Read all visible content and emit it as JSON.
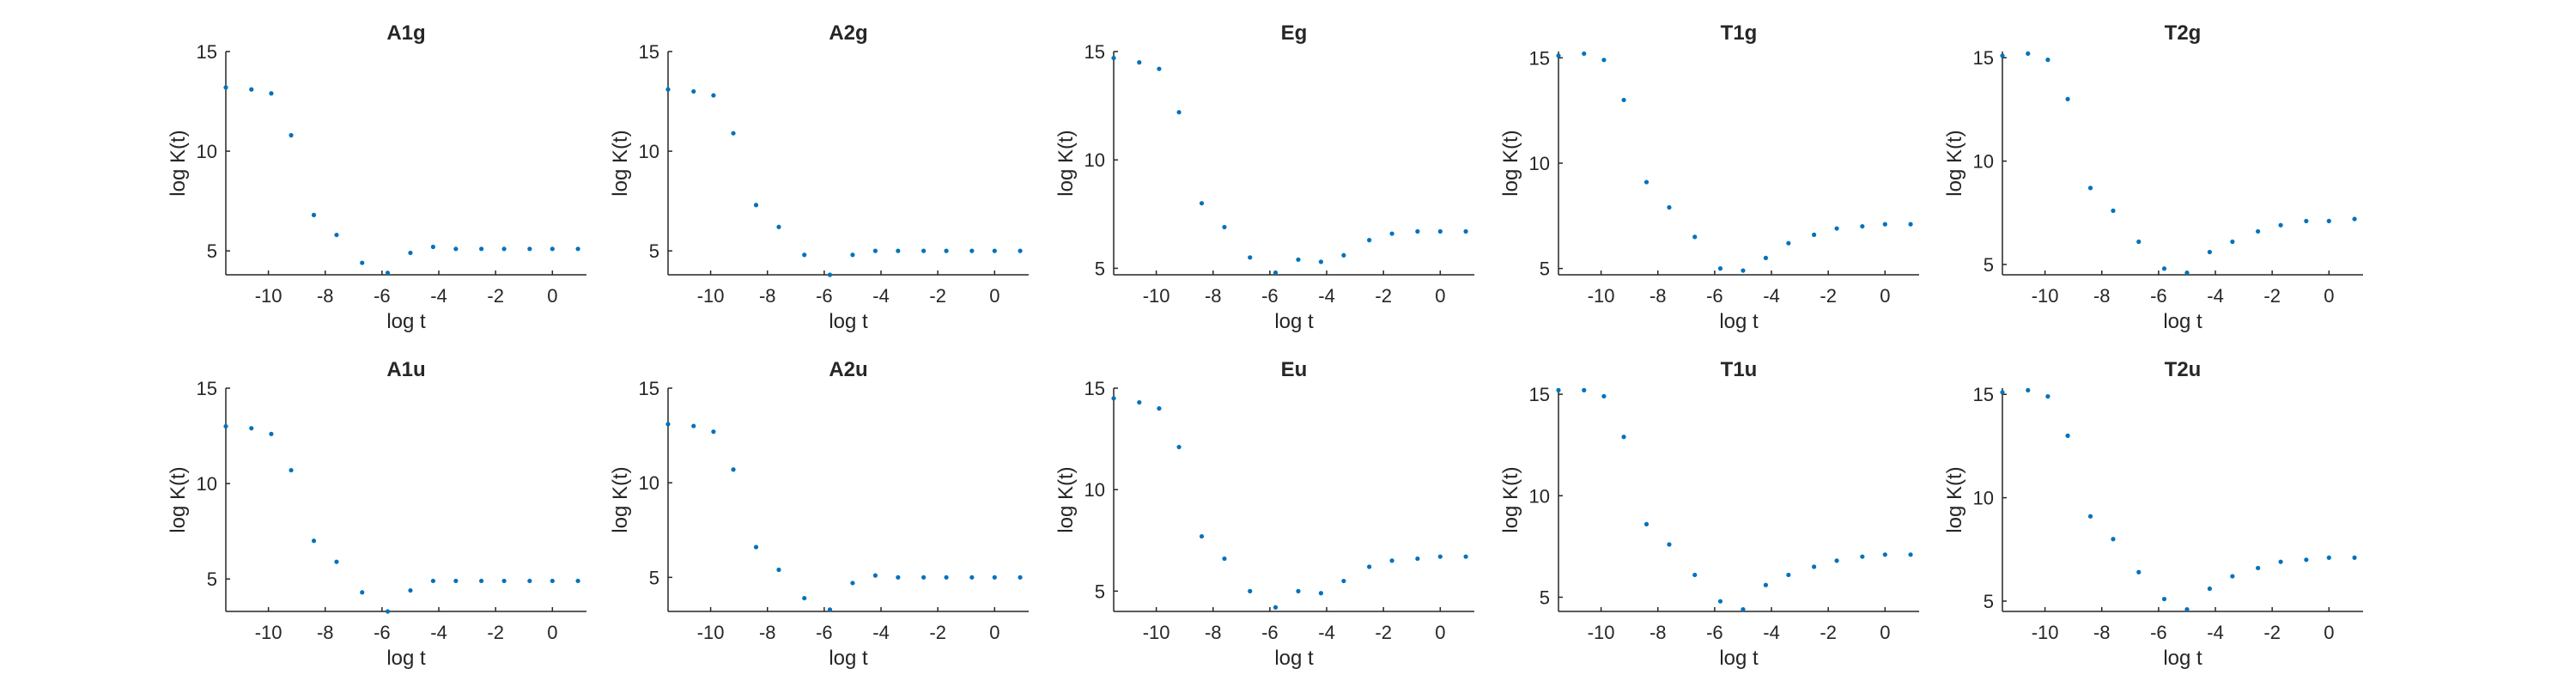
{
  "chart_data": [
    {
      "type": "scatter",
      "title": "A1g",
      "xlabel": "log t",
      "ylabel": "log K(t)",
      "xlim": [
        -11.5,
        1.2
      ],
      "ylim": [
        3.8,
        15
      ],
      "xticks": [
        -10,
        -8,
        -6,
        -4,
        -2,
        0
      ],
      "yticks": [
        5,
        10,
        15
      ],
      "series": [
        {
          "x": [
            -11.5,
            -10.6,
            -9.9,
            -9.2,
            -8.4,
            -7.6,
            -6.7,
            -5.8,
            -5.0,
            -4.2,
            -3.4,
            -2.5,
            -1.7,
            -0.8,
            0.0,
            0.9
          ],
          "y": [
            13.2,
            13.1,
            12.9,
            10.8,
            6.8,
            5.8,
            4.4,
            3.9,
            4.9,
            5.2,
            5.1,
            5.1,
            5.1,
            5.1,
            5.1,
            5.1
          ]
        }
      ]
    },
    {
      "type": "scatter",
      "title": "A2g",
      "xlabel": "log t",
      "ylabel": "log K(t)",
      "xlim": [
        -11.5,
        1.2
      ],
      "ylim": [
        3.8,
        15
      ],
      "xticks": [
        -10,
        -8,
        -6,
        -4,
        -2,
        0
      ],
      "yticks": [
        5,
        10,
        15
      ],
      "series": [
        {
          "x": [
            -11.5,
            -10.6,
            -9.9,
            -9.2,
            -8.4,
            -7.6,
            -6.7,
            -5.8,
            -5.0,
            -4.2,
            -3.4,
            -2.5,
            -1.7,
            -0.8,
            0.0,
            0.9
          ],
          "y": [
            13.1,
            13.0,
            12.8,
            10.9,
            7.3,
            6.2,
            4.8,
            3.8,
            4.8,
            5.0,
            5.0,
            5.0,
            5.0,
            5.0,
            5.0,
            5.0
          ]
        }
      ]
    },
    {
      "type": "scatter",
      "title": "Eg",
      "xlabel": "log t",
      "ylabel": "log K(t)",
      "xlim": [
        -11.5,
        1.2
      ],
      "ylim": [
        4.7,
        15
      ],
      "xticks": [
        -10,
        -8,
        -6,
        -4,
        -2,
        0
      ],
      "yticks": [
        5,
        10,
        15
      ],
      "series": [
        {
          "x": [
            -11.5,
            -10.6,
            -9.9,
            -9.2,
            -8.4,
            -7.6,
            -6.7,
            -5.8,
            -5.0,
            -4.2,
            -3.4,
            -2.5,
            -1.7,
            -0.8,
            0.0,
            0.9
          ],
          "y": [
            14.7,
            14.5,
            14.2,
            12.2,
            8.0,
            6.9,
            5.5,
            4.8,
            5.4,
            5.3,
            5.6,
            6.3,
            6.6,
            6.7,
            6.7,
            6.7
          ]
        }
      ]
    },
    {
      "type": "scatter",
      "title": "T1g",
      "xlabel": "log t",
      "ylabel": "log K(t)",
      "xlim": [
        -11.5,
        1.2
      ],
      "ylim": [
        4.7,
        15.3
      ],
      "xticks": [
        -10,
        -8,
        -6,
        -4,
        -2,
        0
      ],
      "yticks": [
        5,
        10,
        15
      ],
      "series": [
        {
          "x": [
            -11.5,
            -10.6,
            -9.9,
            -9.2,
            -8.4,
            -7.6,
            -6.7,
            -5.8,
            -5.0,
            -4.2,
            -3.4,
            -2.5,
            -1.7,
            -0.8,
            0.0,
            0.9
          ],
          "y": [
            15.1,
            15.2,
            14.9,
            13.0,
            9.1,
            7.9,
            6.5,
            5.0,
            4.9,
            5.5,
            6.2,
            6.6,
            6.9,
            7.0,
            7.1,
            7.1
          ]
        }
      ]
    },
    {
      "type": "scatter",
      "title": "T2g",
      "xlabel": "log t",
      "ylabel": "log K(t)",
      "xlim": [
        -11.5,
        1.2
      ],
      "ylim": [
        4.5,
        15.3
      ],
      "xticks": [
        -10,
        -8,
        -6,
        -4,
        -2,
        0
      ],
      "yticks": [
        5,
        10,
        15
      ],
      "series": [
        {
          "x": [
            -11.5,
            -10.6,
            -9.9,
            -9.2,
            -8.4,
            -7.6,
            -6.7,
            -5.8,
            -5.0,
            -4.2,
            -3.4,
            -2.5,
            -1.7,
            -0.8,
            0.0,
            0.9
          ],
          "y": [
            15.1,
            15.2,
            14.9,
            13.0,
            8.7,
            7.6,
            6.1,
            4.8,
            4.6,
            5.6,
            6.1,
            6.6,
            6.9,
            7.1,
            7.1,
            7.2
          ]
        }
      ]
    },
    {
      "type": "scatter",
      "title": "A1u",
      "xlabel": "log t",
      "ylabel": "log K(t)",
      "xlim": [
        -11.5,
        1.2
      ],
      "ylim": [
        3.3,
        15
      ],
      "xticks": [
        -10,
        -8,
        -6,
        -4,
        -2,
        0
      ],
      "yticks": [
        5,
        10,
        15
      ],
      "series": [
        {
          "x": [
            -11.5,
            -10.6,
            -9.9,
            -9.2,
            -8.4,
            -7.6,
            -6.7,
            -5.8,
            -5.0,
            -4.2,
            -3.4,
            -2.5,
            -1.7,
            -0.8,
            0.0,
            0.9
          ],
          "y": [
            13.0,
            12.9,
            12.6,
            10.7,
            7.0,
            5.9,
            4.3,
            3.3,
            4.4,
            4.9,
            4.9,
            4.9,
            4.9,
            4.9,
            4.9,
            4.9
          ]
        }
      ]
    },
    {
      "type": "scatter",
      "title": "A2u",
      "xlabel": "log t",
      "ylabel": "log K(t)",
      "xlim": [
        -11.5,
        1.2
      ],
      "ylim": [
        3.2,
        15
      ],
      "xticks": [
        -10,
        -8,
        -6,
        -4,
        -2,
        0
      ],
      "yticks": [
        5,
        10,
        15
      ],
      "series": [
        {
          "x": [
            -11.5,
            -10.6,
            -9.9,
            -9.2,
            -8.4,
            -7.6,
            -6.7,
            -5.8,
            -5.0,
            -4.2,
            -3.4,
            -2.5,
            -1.7,
            -0.8,
            0.0,
            0.9
          ],
          "y": [
            13.1,
            13.0,
            12.7,
            10.7,
            6.6,
            5.4,
            3.9,
            3.3,
            4.7,
            5.1,
            5.0,
            5.0,
            5.0,
            5.0,
            5.0,
            5.0
          ]
        }
      ]
    },
    {
      "type": "scatter",
      "title": "Eu",
      "xlabel": "log t",
      "ylabel": "log K(t)",
      "xlim": [
        -11.5,
        1.2
      ],
      "ylim": [
        4.0,
        15
      ],
      "xticks": [
        -10,
        -8,
        -6,
        -4,
        -2,
        0
      ],
      "yticks": [
        5,
        10,
        15
      ],
      "series": [
        {
          "x": [
            -11.5,
            -10.6,
            -9.9,
            -9.2,
            -8.4,
            -7.6,
            -6.7,
            -5.8,
            -5.0,
            -4.2,
            -3.4,
            -2.5,
            -1.7,
            -0.8,
            0.0,
            0.9
          ],
          "y": [
            14.5,
            14.3,
            14.0,
            12.1,
            7.7,
            6.6,
            5.0,
            4.2,
            5.0,
            4.9,
            5.5,
            6.2,
            6.5,
            6.6,
            6.7,
            6.7
          ]
        }
      ]
    },
    {
      "type": "scatter",
      "title": "T1u",
      "xlabel": "log t",
      "ylabel": "log K(t)",
      "xlim": [
        -11.5,
        1.2
      ],
      "ylim": [
        4.3,
        15.3
      ],
      "xticks": [
        -10,
        -8,
        -6,
        -4,
        -2,
        0
      ],
      "yticks": [
        5,
        10,
        15
      ],
      "series": [
        {
          "x": [
            -11.5,
            -10.6,
            -9.9,
            -9.2,
            -8.4,
            -7.6,
            -6.7,
            -5.8,
            -5.0,
            -4.2,
            -3.4,
            -2.5,
            -1.7,
            -0.8,
            0.0,
            0.9
          ],
          "y": [
            15.2,
            15.2,
            14.9,
            12.9,
            8.6,
            7.6,
            6.1,
            4.8,
            4.4,
            5.6,
            6.1,
            6.5,
            6.8,
            7.0,
            7.1,
            7.1
          ]
        }
      ]
    },
    {
      "type": "scatter",
      "title": "T2u",
      "xlabel": "log t",
      "ylabel": "log K(t)",
      "xlim": [
        -11.5,
        1.2
      ],
      "ylim": [
        4.5,
        15.3
      ],
      "xticks": [
        -10,
        -8,
        -6,
        -4,
        -2,
        0
      ],
      "yticks": [
        5,
        10,
        15
      ],
      "series": [
        {
          "x": [
            -11.5,
            -10.6,
            -9.9,
            -9.2,
            -8.4,
            -7.6,
            -6.7,
            -5.8,
            -5.0,
            -4.2,
            -3.4,
            -2.5,
            -1.7,
            -0.8,
            0.0,
            0.9
          ],
          "y": [
            15.1,
            15.2,
            14.9,
            13.0,
            9.1,
            8.0,
            6.4,
            5.1,
            4.6,
            5.6,
            6.2,
            6.6,
            6.9,
            7.0,
            7.1,
            7.1
          ]
        }
      ]
    }
  ],
  "style": {
    "marker_color": "#0072bd",
    "axis_color": "#262626",
    "background": "#ffffff"
  }
}
